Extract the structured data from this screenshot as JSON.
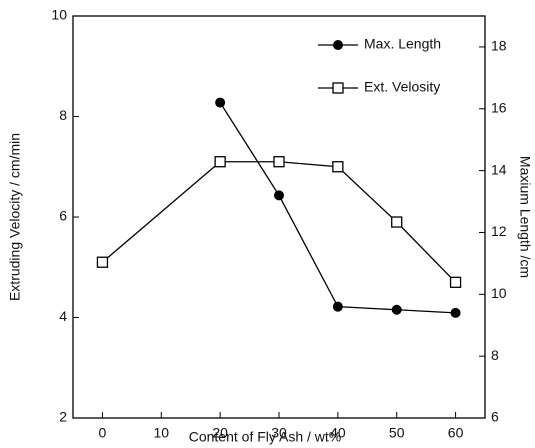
{
  "chart_data": {
    "type": "line",
    "x_label": "Content of Fly Ash / wt%",
    "y_label": "Extruding Velocity / cm/min",
    "y2_label": "Maxium Length /cm",
    "x": [
      0,
      10,
      20,
      30,
      40,
      50,
      60
    ],
    "series": [
      {
        "name": "Max. Length",
        "color": "#000000",
        "marker": "circle",
        "axis": "y2",
        "values": [
          null,
          null,
          16.2,
          13.2,
          9.6,
          9.5,
          9.4
        ]
      },
      {
        "name": "Ext. Velosity",
        "color": "#000000",
        "marker": "square",
        "values": [
          5.1,
          null,
          7.1,
          7.1,
          7.0,
          5.9,
          4.7
        ]
      }
    ],
    "xlim": [
      -5,
      65
    ],
    "xticks": [
      0,
      10,
      20,
      30,
      40,
      50,
      60
    ],
    "ylim": [
      2,
      10
    ],
    "yticks": [
      2,
      4,
      6,
      8,
      10
    ],
    "y2lim": [
      6,
      19
    ],
    "y2ticks": [
      6,
      8,
      10,
      12,
      14,
      16,
      18
    ],
    "legend": "upper right"
  }
}
